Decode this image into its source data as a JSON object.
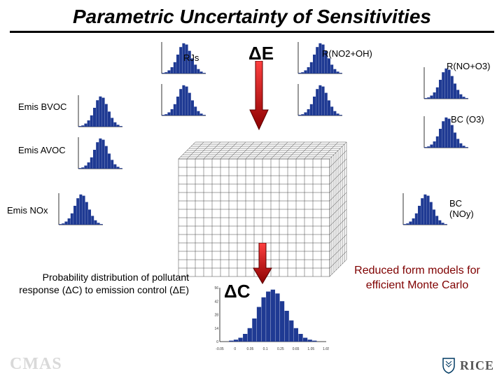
{
  "title": "Parametric Uncertainty of Sensitivities",
  "delta_e": "ΔE",
  "delta_c": "ΔC",
  "labels": {
    "rjs": "RJs",
    "rno2oh": "R(NO2+OH)",
    "rnoo3": "R(NO+O3)",
    "bco3": "BC (O3)",
    "bcnoy": "BC\n(NOy)",
    "emis_bvoc": "Emis BVOC",
    "emis_avoc": "Emis AVOC",
    "emis_nox": "Emis NOx"
  },
  "description": "Probability distribution of pollutant response (ΔC) to emission control (ΔE)",
  "callout": "Reduced form models for efficient Monte Carlo",
  "footer": {
    "cmas": "CMAS",
    "rice": "RICE"
  },
  "hist_style": {
    "fill": "#1f3a93",
    "axis": "#000000",
    "bg": "#ffffff"
  },
  "hist_small": {
    "bins": [
      1,
      2,
      5,
      10,
      18,
      30,
      42,
      48,
      46,
      36,
      24,
      14,
      7,
      3,
      1
    ],
    "xlim": [
      0,
      15
    ],
    "ylim": [
      0,
      50
    ]
  },
  "hist_big": {
    "bins": [
      0,
      0,
      1,
      2,
      4,
      8,
      14,
      24,
      36,
      46,
      52,
      54,
      50,
      42,
      32,
      22,
      14,
      8,
      4,
      2,
      1,
      0,
      0
    ],
    "xlim": [
      0,
      23
    ],
    "ylim": [
      0,
      56
    ],
    "ticks": [
      "-0.05",
      "0",
      "0.05",
      "0.1",
      "0.25",
      "0.65",
      "1.05",
      "1.65"
    ]
  },
  "cube": {
    "rows": 14,
    "cols": 18,
    "depth": 8,
    "cell": 12,
    "dx": 3,
    "dy": -3,
    "stroke": "#444444",
    "fill": "#ffffff"
  },
  "arrows": {
    "fill_start": "#ff0000",
    "fill_end": "#8b0000",
    "stroke": "#5a0000"
  }
}
